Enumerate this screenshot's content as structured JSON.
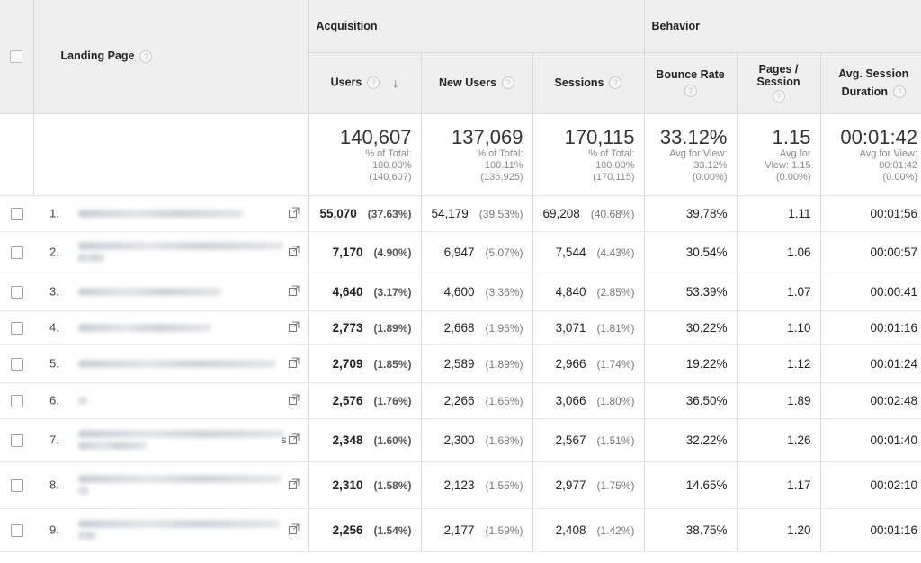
{
  "groups": {
    "acquisition": "Acquisition",
    "behavior": "Behavior"
  },
  "columns": {
    "landing_page": "Landing Page",
    "users": "Users",
    "new_users": "New Users",
    "sessions": "Sessions",
    "bounce_rate": "Bounce Rate",
    "pages_session_1": "Pages /",
    "pages_session_2": "Session",
    "avg_duration_1": "Avg. Session",
    "avg_duration_2": "Duration"
  },
  "totals": {
    "users": {
      "value": "140,607",
      "l1": "% of Total:",
      "l2": "100.00%",
      "l3": "(140,607)"
    },
    "new_users": {
      "value": "137,069",
      "l1": "% of Total:",
      "l2": "100.11%",
      "l3": "(136,925)"
    },
    "sessions": {
      "value": "170,115",
      "l1": "% of Total:",
      "l2": "100.00%",
      "l3": "(170,115)"
    },
    "bounce_rate": {
      "value": "33.12%",
      "l1": "Avg for View:",
      "l2": "33.12%",
      "l3": "(0.00%)"
    },
    "pages_session": {
      "value": "1.15",
      "l1": "Avg for",
      "l2": "View: 1.15",
      "l3": "(0.00%)"
    },
    "avg_duration": {
      "value": "00:01:42",
      "l1": "Avg for View:",
      "l2": "00:01:42",
      "l3": "(0.00%)"
    }
  },
  "rows": [
    {
      "idx": "1.",
      "users": "55,070",
      "users_pct": "(37.63%)",
      "new_users": "54,179",
      "new_users_pct": "(39.53%)",
      "sessions": "69,208",
      "sessions_pct": "(40.68%)",
      "bounce": "39.78%",
      "pages": "1.11",
      "duration": "00:01:56"
    },
    {
      "idx": "2.",
      "users": "7,170",
      "users_pct": "(4.90%)",
      "new_users": "6,947",
      "new_users_pct": "(5.07%)",
      "sessions": "7,544",
      "sessions_pct": "(4.43%)",
      "bounce": "30.54%",
      "pages": "1.06",
      "duration": "00:00:57"
    },
    {
      "idx": "3.",
      "users": "4,640",
      "users_pct": "(3.17%)",
      "new_users": "4,600",
      "new_users_pct": "(3.36%)",
      "sessions": "4,840",
      "sessions_pct": "(2.85%)",
      "bounce": "53.39%",
      "pages": "1.07",
      "duration": "00:00:41"
    },
    {
      "idx": "4.",
      "users": "2,773",
      "users_pct": "(1.89%)",
      "new_users": "2,668",
      "new_users_pct": "(1.95%)",
      "sessions": "3,071",
      "sessions_pct": "(1.81%)",
      "bounce": "30.22%",
      "pages": "1.10",
      "duration": "00:01:16"
    },
    {
      "idx": "5.",
      "users": "2,709",
      "users_pct": "(1.85%)",
      "new_users": "2,589",
      "new_users_pct": "(1.89%)",
      "sessions": "2,966",
      "sessions_pct": "(1.74%)",
      "bounce": "19.22%",
      "pages": "1.12",
      "duration": "00:01:24"
    },
    {
      "idx": "6.",
      "users": "2,576",
      "users_pct": "(1.76%)",
      "new_users": "2,266",
      "new_users_pct": "(1.65%)",
      "sessions": "3,066",
      "sessions_pct": "(1.80%)",
      "bounce": "36.50%",
      "pages": "1.89",
      "duration": "00:02:48"
    },
    {
      "idx": "7.",
      "users": "2,348",
      "users_pct": "(1.60%)",
      "new_users": "2,300",
      "new_users_pct": "(1.68%)",
      "sessions": "2,567",
      "sessions_pct": "(1.51%)",
      "bounce": "32.22%",
      "pages": "1.26",
      "duration": "00:01:40",
      "trail": "s"
    },
    {
      "idx": "8.",
      "users": "2,310",
      "users_pct": "(1.58%)",
      "new_users": "2,123",
      "new_users_pct": "(1.55%)",
      "sessions": "2,977",
      "sessions_pct": "(1.75%)",
      "bounce": "14.65%",
      "pages": "1.17",
      "duration": "00:02:10"
    },
    {
      "idx": "9.",
      "users": "2,256",
      "users_pct": "(1.54%)",
      "new_users": "2,177",
      "new_users_pct": "(1.59%)",
      "sessions": "2,408",
      "sessions_pct": "(1.42%)",
      "bounce": "38.75%",
      "pages": "1.20",
      "duration": "00:01:16"
    }
  ],
  "icons": {
    "help": "help-circle-icon",
    "sort": "arrow-down-icon",
    "open": "open-external-icon"
  }
}
